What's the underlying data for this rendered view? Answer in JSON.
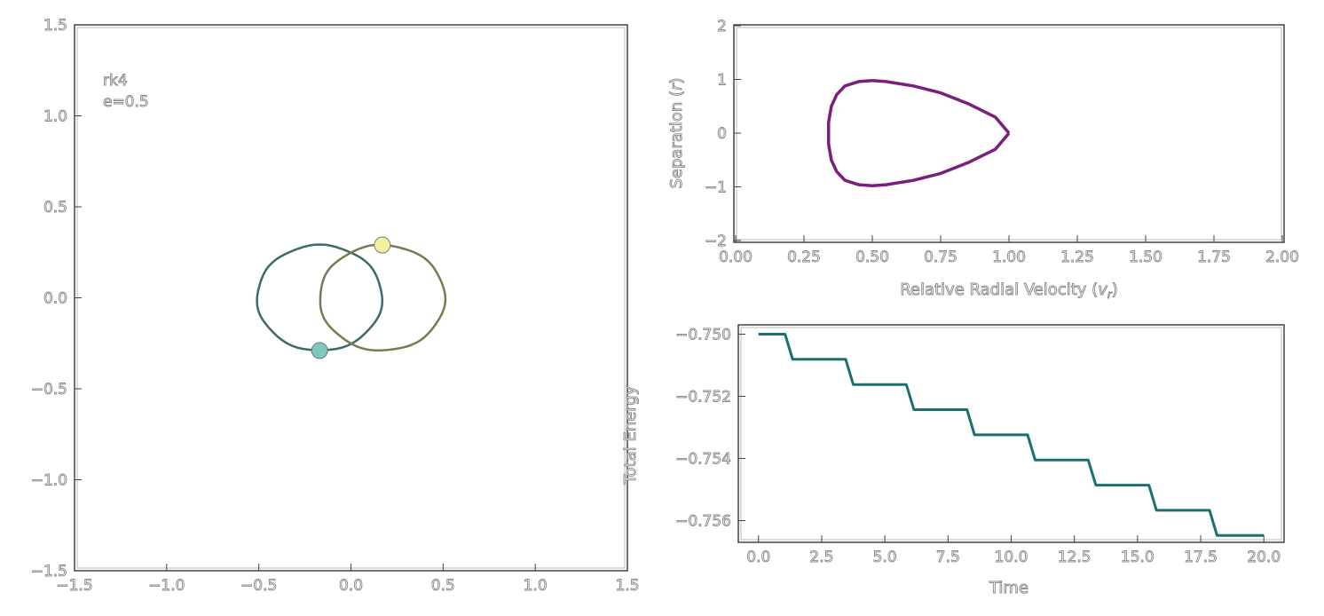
{
  "chart_data": [
    {
      "type": "line",
      "panel": "orbit",
      "xlim": [
        -1.5,
        1.5
      ],
      "ylim": [
        -1.5,
        1.5
      ],
      "xticks": [
        "−1.5",
        "−1.0",
        "−0.5",
        "0.0",
        "0.5",
        "1.0",
        "1.5"
      ],
      "yticks": [
        "−1.5",
        "−1.0",
        "−0.5",
        "0.0",
        "0.5",
        "1.0",
        "1.5"
      ],
      "xtick_values": [
        -1.5,
        -1.0,
        -0.5,
        0.0,
        0.5,
        1.0,
        1.5
      ],
      "ytick_values": [
        -1.5,
        -1.0,
        -0.5,
        0.0,
        0.5,
        1.0,
        1.5
      ],
      "annotations": [
        "rk4",
        "e=0.5"
      ],
      "orbits": [
        {
          "color": "#3d6b6b",
          "center": [
            -0.17,
            0.0
          ],
          "semi_axes": [
            0.5,
            0.29
          ]
        },
        {
          "color": "#7a7a50",
          "center": [
            0.17,
            0.0
          ],
          "semi_axes": [
            0.5,
            0.29
          ]
        }
      ],
      "bodies": [
        {
          "x": 0.17,
          "y": 0.29,
          "color": "#f3f0a0"
        },
        {
          "x": -0.17,
          "y": -0.29,
          "color": "#7ec8bc"
        }
      ],
      "grid": false
    },
    {
      "type": "line",
      "panel": "phase",
      "xlabel": "Relative Radial Velocity (v_r)",
      "ylabel": "Separation (r)",
      "xlim": [
        0.0,
        2.0
      ],
      "ylim": [
        -2,
        2
      ],
      "xticks": [
        "0.00",
        "0.25",
        "0.50",
        "0.75",
        "1.00",
        "1.25",
        "1.50",
        "1.75",
        "2.00"
      ],
      "yticks": [
        "−2",
        "−1",
        "0",
        "1",
        "2"
      ],
      "xtick_values": [
        0.0,
        0.25,
        0.5,
        0.75,
        1.0,
        1.25,
        1.5,
        1.75,
        2.0
      ],
      "ytick_values": [
        -2,
        -1,
        0,
        1,
        2
      ],
      "color": "#7a1f7e",
      "curve": {
        "x": [
          1.0,
          0.95,
          0.85,
          0.75,
          0.65,
          0.55,
          0.5,
          0.45,
          0.4,
          0.37,
          0.35,
          0.34,
          0.34,
          0.35,
          0.37,
          0.4,
          0.45,
          0.5,
          0.55,
          0.65,
          0.75,
          0.85,
          0.95,
          1.0
        ],
        "y": [
          0.0,
          0.3,
          0.55,
          0.75,
          0.88,
          0.96,
          0.98,
          0.96,
          0.88,
          0.72,
          0.5,
          0.2,
          -0.2,
          -0.5,
          -0.72,
          -0.88,
          -0.96,
          -0.98,
          -0.96,
          -0.88,
          -0.75,
          -0.55,
          -0.3,
          0.0
        ]
      },
      "grid": false
    },
    {
      "type": "line",
      "panel": "energy",
      "xlabel": "Time",
      "ylabel": "Total Energy",
      "xlim": [
        -0.8,
        20.8
      ],
      "ylim": [
        -0.7567,
        -0.7497
      ],
      "xticks": [
        "0.0",
        "2.5",
        "5.0",
        "7.5",
        "10.0",
        "12.5",
        "15.0",
        "17.5",
        "20.0"
      ],
      "yticks": [
        "−0.750",
        "−0.752",
        "−0.754",
        "−0.756"
      ],
      "xtick_values": [
        0.0,
        2.5,
        5.0,
        7.5,
        10.0,
        12.5,
        15.0,
        17.5,
        20.0
      ],
      "ytick_values": [
        -0.75,
        -0.752,
        -0.754,
        -0.756
      ],
      "color": "#1a7070",
      "steps": {
        "t_start": 0.0,
        "t_end": 20.0,
        "e_start": -0.75,
        "step_times": [
          1.2,
          3.6,
          6.0,
          8.4,
          10.8,
          13.2,
          15.6,
          18.0
        ],
        "step_size": -0.00081
      },
      "grid": false
    }
  ]
}
